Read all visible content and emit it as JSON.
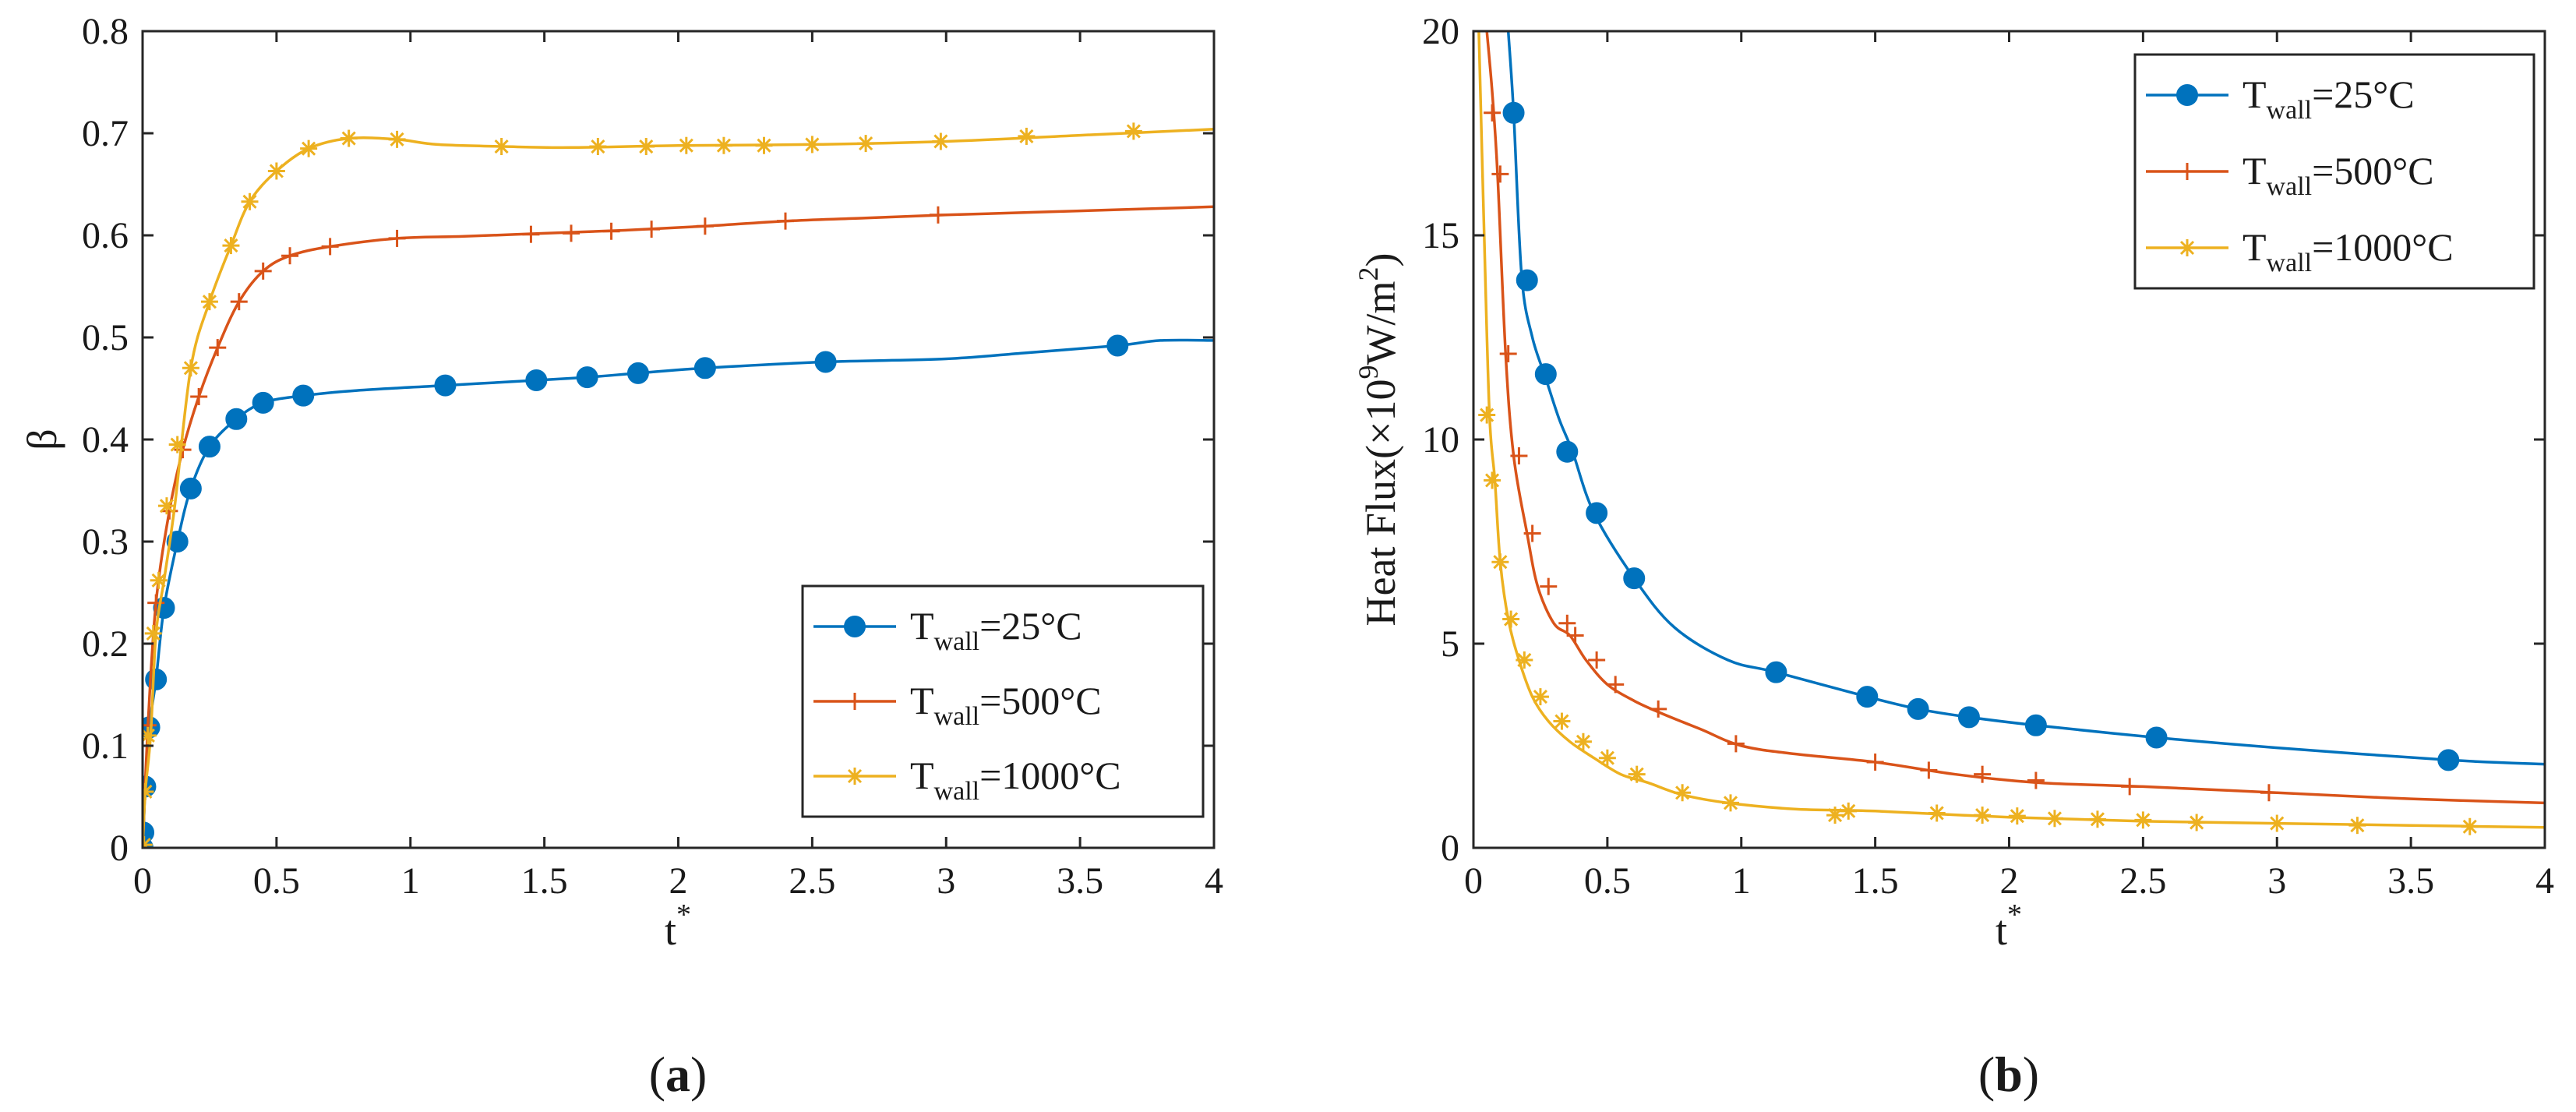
{
  "chart_data": [
    {
      "panel_label": "a",
      "type": "line",
      "title": "",
      "xlabel": "t",
      "xlabel_superscript": "*",
      "ylabel": "β",
      "xlim": [
        0,
        4
      ],
      "ylim": [
        0,
        0.8
      ],
      "xticks": [
        0,
        0.5,
        1,
        1.5,
        2,
        2.5,
        3,
        3.5,
        4
      ],
      "xtick_labels": [
        "0",
        "0.5",
        "1",
        "1.5",
        "2",
        "2.5",
        "3",
        "3.5",
        "4"
      ],
      "yticks": [
        0,
        0.1,
        0.2,
        0.3,
        0.4,
        0.5,
        0.6,
        0.7,
        0.8
      ],
      "ytick_labels": [
        "0",
        "0.1",
        "0.2",
        "0.3",
        "0.4",
        "0.5",
        "0.6",
        "0.7",
        "0.8"
      ],
      "grid": false,
      "legend_position": "bottom-right",
      "series": [
        {
          "name": "T_wall=25°C",
          "legend_main": "T",
          "legend_sub": "wall",
          "legend_tail": "=25°C",
          "color": "#0072BD",
          "marker": "circle",
          "x": [
            0,
            0.003,
            0.01,
            0.025,
            0.05,
            0.08,
            0.13,
            0.18,
            0.25,
            0.35,
            0.45,
            0.6,
            0.8,
            1.13,
            1.47,
            1.66,
            1.85,
            2.1,
            2.55,
            3.0,
            3.3,
            3.64,
            3.8,
            4.0
          ],
          "y": [
            0,
            0.015,
            0.06,
            0.118,
            0.165,
            0.235,
            0.3,
            0.352,
            0.393,
            0.42,
            0.436,
            0.443,
            0.448,
            0.453,
            0.458,
            0.461,
            0.465,
            0.47,
            0.476,
            0.479,
            0.485,
            0.492,
            0.497,
            0.497
          ],
          "markers": [
            [
              0,
              0
            ],
            [
              0.003,
              0.015
            ],
            [
              0.01,
              0.06
            ],
            [
              0.025,
              0.118
            ],
            [
              0.05,
              0.165
            ],
            [
              0.08,
              0.235
            ],
            [
              0.13,
              0.3
            ],
            [
              0.18,
              0.352
            ],
            [
              0.25,
              0.393
            ],
            [
              0.35,
              0.42
            ],
            [
              0.45,
              0.436
            ],
            [
              0.6,
              0.443
            ],
            [
              1.13,
              0.453
            ],
            [
              1.47,
              0.458
            ],
            [
              1.66,
              0.461
            ],
            [
              1.85,
              0.465
            ],
            [
              2.1,
              0.47
            ],
            [
              2.55,
              0.476
            ],
            [
              3.64,
              0.492
            ]
          ]
        },
        {
          "name": "T_wall=500°C",
          "legend_main": "T",
          "legend_sub": "wall",
          "legend_tail": "=500°C",
          "color": "#D95319",
          "marker": "plus",
          "x": [
            0,
            0.02,
            0.05,
            0.1,
            0.15,
            0.21,
            0.28,
            0.36,
            0.45,
            0.55,
            0.7,
            0.95,
            1.2,
            1.5,
            1.8,
            2.1,
            2.4,
            2.7,
            3.0,
            3.5,
            4.0
          ],
          "y": [
            0,
            0.12,
            0.24,
            0.33,
            0.39,
            0.442,
            0.49,
            0.535,
            0.565,
            0.58,
            0.589,
            0.597,
            0.599,
            0.602,
            0.605,
            0.609,
            0.614,
            0.617,
            0.62,
            0.624,
            0.628
          ],
          "markers": [
            [
              0.02,
              0.12
            ],
            [
              0.05,
              0.24
            ],
            [
              0.1,
              0.33
            ],
            [
              0.15,
              0.39
            ],
            [
              0.21,
              0.442
            ],
            [
              0.28,
              0.49
            ],
            [
              0.36,
              0.535
            ],
            [
              0.45,
              0.565
            ],
            [
              0.55,
              0.58
            ],
            [
              0.7,
              0.589
            ],
            [
              0.95,
              0.597
            ],
            [
              1.45,
              0.601
            ],
            [
              1.6,
              0.602
            ],
            [
              1.75,
              0.604
            ],
            [
              1.9,
              0.606
            ],
            [
              2.1,
              0.609
            ],
            [
              2.4,
              0.614
            ],
            [
              2.97,
              0.62
            ]
          ]
        },
        {
          "name": "T_wall=1000°C",
          "legend_main": "T",
          "legend_sub": "wall",
          "legend_tail": "=1000°C",
          "color": "#EDB120",
          "marker": "asterisk",
          "x": [
            0,
            0.01,
            0.03,
            0.05,
            0.08,
            0.12,
            0.18,
            0.25,
            0.33,
            0.4,
            0.5,
            0.62,
            0.77,
            0.95,
            1.1,
            1.35,
            1.6,
            2.0,
            2.5,
            3.0,
            3.5,
            4.0
          ],
          "y": [
            0,
            0.055,
            0.11,
            0.21,
            0.262,
            0.335,
            0.47,
            0.535,
            0.59,
            0.633,
            0.663,
            0.685,
            0.695,
            0.694,
            0.689,
            0.687,
            0.686,
            0.688,
            0.689,
            0.692,
            0.698,
            0.704
          ],
          "markers": [
            [
              0.005,
              0.003
            ],
            [
              0.01,
              0.055
            ],
            [
              0.02,
              0.11
            ],
            [
              0.04,
              0.21
            ],
            [
              0.06,
              0.262
            ],
            [
              0.09,
              0.335
            ],
            [
              0.13,
              0.395
            ],
            [
              0.18,
              0.47
            ],
            [
              0.25,
              0.535
            ],
            [
              0.33,
              0.59
            ],
            [
              0.4,
              0.633
            ],
            [
              0.5,
              0.663
            ],
            [
              0.62,
              0.685
            ],
            [
              0.77,
              0.695
            ],
            [
              0.95,
              0.694
            ],
            [
              1.34,
              0.687
            ],
            [
              1.7,
              0.687
            ],
            [
              1.88,
              0.687
            ],
            [
              2.03,
              0.688
            ],
            [
              2.17,
              0.688
            ],
            [
              2.32,
              0.688
            ],
            [
              2.5,
              0.689
            ],
            [
              2.7,
              0.69
            ],
            [
              2.98,
              0.692
            ],
            [
              3.3,
              0.697
            ],
            [
              3.7,
              0.702
            ]
          ]
        }
      ]
    },
    {
      "panel_label": "b",
      "type": "line",
      "title": "",
      "xlabel": "t",
      "xlabel_superscript": "*",
      "ylabel_parts": [
        "Heat Flux(×10",
        "9",
        "W/m",
        "2",
        ")"
      ],
      "xlim": [
        0,
        4
      ],
      "ylim": [
        0,
        20
      ],
      "xticks": [
        0,
        0.5,
        1,
        1.5,
        2,
        2.5,
        3,
        3.5,
        4
      ],
      "xtick_labels": [
        "0",
        "0.5",
        "1",
        "1.5",
        "2",
        "2.5",
        "3",
        "3.5",
        "4"
      ],
      "yticks": [
        0,
        5,
        10,
        15,
        20
      ],
      "ytick_labels": [
        "0",
        "5",
        "10",
        "15",
        "20"
      ],
      "grid": false,
      "legend_position": "top-right",
      "series": [
        {
          "name": "T_wall=25°C",
          "legend_main": "T",
          "legend_sub": "wall",
          "legend_tail": "=25°C",
          "color": "#0072BD",
          "marker": "circle",
          "x": [
            0.13,
            0.15,
            0.18,
            0.22,
            0.27,
            0.32,
            0.37,
            0.45,
            0.6,
            0.75,
            0.95,
            1.13,
            1.47,
            1.66,
            1.85,
            2.1,
            2.55,
            3.0,
            3.64,
            4.0
          ],
          "y": [
            20.0,
            18.0,
            14.0,
            12.5,
            11.5,
            10.5,
            9.7,
            8.2,
            6.6,
            5.4,
            4.6,
            4.3,
            3.7,
            3.4,
            3.2,
            3.0,
            2.7,
            2.45,
            2.15,
            2.05
          ],
          "markers": [
            [
              0.15,
              18.0
            ],
            [
              0.2,
              13.9
            ],
            [
              0.27,
              11.6
            ],
            [
              0.35,
              9.7
            ],
            [
              0.46,
              8.2
            ],
            [
              0.6,
              6.6
            ],
            [
              1.13,
              4.3
            ],
            [
              1.47,
              3.7
            ],
            [
              1.66,
              3.4
            ],
            [
              1.85,
              3.2
            ],
            [
              2.1,
              3.0
            ],
            [
              2.55,
              2.7
            ],
            [
              3.64,
              2.15
            ]
          ]
        },
        {
          "name": "T_wall=500°C",
          "legend_main": "T",
          "legend_sub": "wall",
          "legend_tail": "=500°C",
          "color": "#D95319",
          "marker": "plus",
          "x": [
            0.05,
            0.07,
            0.09,
            0.12,
            0.15,
            0.2,
            0.24,
            0.3,
            0.36,
            0.42,
            0.5,
            0.6,
            0.7,
            0.85,
            1.0,
            1.2,
            1.5,
            1.8,
            2.1,
            2.5,
            3.0,
            3.5,
            4.0
          ],
          "y": [
            20.0,
            18.5,
            16.5,
            12.1,
            9.6,
            7.7,
            6.4,
            5.5,
            5.2,
            4.6,
            4.0,
            3.6,
            3.3,
            2.9,
            2.5,
            2.3,
            2.1,
            1.8,
            1.6,
            1.5,
            1.35,
            1.2,
            1.1
          ],
          "markers": [
            [
              0.07,
              18.0
            ],
            [
              0.1,
              16.5
            ],
            [
              0.13,
              12.1
            ],
            [
              0.17,
              9.6
            ],
            [
              0.22,
              7.7
            ],
            [
              0.28,
              6.4
            ],
            [
              0.35,
              5.5
            ],
            [
              0.38,
              5.2
            ],
            [
              0.46,
              4.6
            ],
            [
              0.53,
              4.0
            ],
            [
              0.69,
              3.4
            ],
            [
              0.98,
              2.55
            ],
            [
              1.5,
              2.1
            ],
            [
              1.7,
              1.9
            ],
            [
              1.9,
              1.8
            ],
            [
              2.1,
              1.65
            ],
            [
              2.45,
              1.5
            ],
            [
              2.97,
              1.35
            ]
          ]
        },
        {
          "name": "T_wall=1000°C",
          "legend_main": "T",
          "legend_sub": "wall",
          "legend_tail": "=1000°C",
          "color": "#EDB120",
          "marker": "asterisk",
          "x": [
            0.02,
            0.04,
            0.06,
            0.08,
            0.1,
            0.13,
            0.17,
            0.22,
            0.28,
            0.36,
            0.45,
            0.55,
            0.65,
            0.78,
            0.95,
            1.2,
            1.5,
            2.0,
            2.5,
            3.0,
            3.5,
            4.0
          ],
          "y": [
            20.0,
            15.0,
            10.6,
            9.0,
            7.0,
            5.6,
            4.6,
            3.7,
            3.1,
            2.6,
            2.2,
            1.8,
            1.6,
            1.3,
            1.1,
            0.95,
            0.9,
            0.75,
            0.65,
            0.6,
            0.55,
            0.5
          ],
          "markers": [
            [
              0.05,
              10.6
            ],
            [
              0.07,
              9.0
            ],
            [
              0.1,
              7.0
            ],
            [
              0.14,
              5.6
            ],
            [
              0.19,
              4.6
            ],
            [
              0.25,
              3.7
            ],
            [
              0.33,
              3.1
            ],
            [
              0.41,
              2.6
            ],
            [
              0.5,
              2.2
            ],
            [
              0.61,
              1.8
            ],
            [
              0.78,
              1.35
            ],
            [
              0.96,
              1.1
            ],
            [
              1.35,
              0.8
            ],
            [
              1.4,
              0.9
            ],
            [
              1.73,
              0.85
            ],
            [
              1.9,
              0.8
            ],
            [
              2.03,
              0.78
            ],
            [
              2.17,
              0.72
            ],
            [
              2.33,
              0.7
            ],
            [
              2.5,
              0.68
            ],
            [
              2.7,
              0.62
            ],
            [
              3.0,
              0.6
            ],
            [
              3.3,
              0.55
            ],
            [
              3.72,
              0.52
            ]
          ]
        }
      ]
    }
  ]
}
